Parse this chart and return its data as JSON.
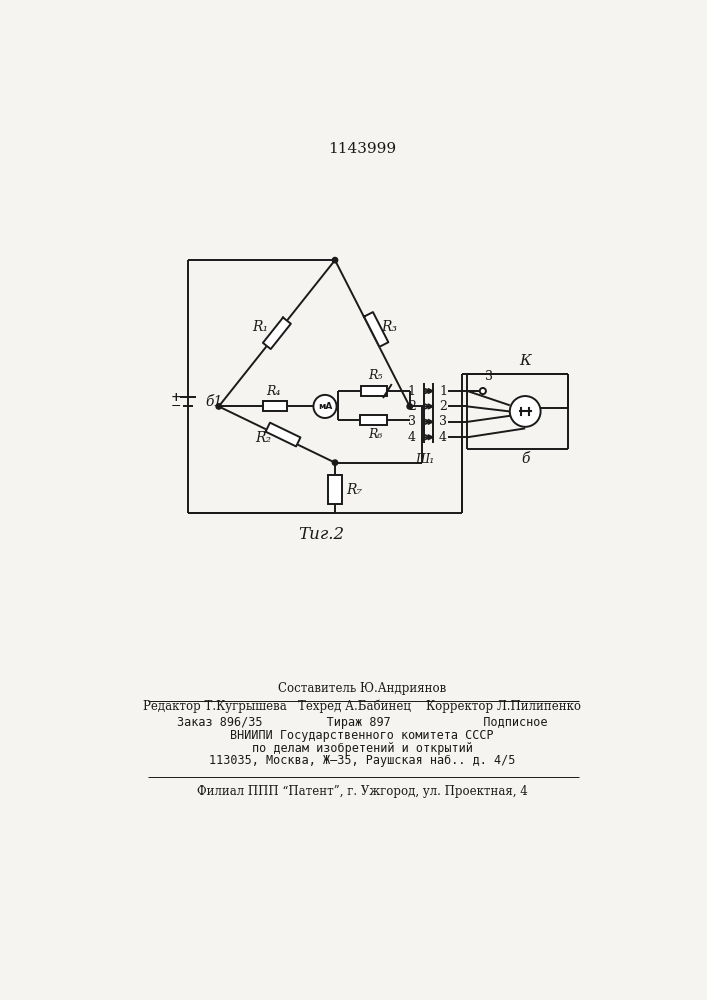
{
  "title": "1143999",
  "fig_label": "Τиг.2",
  "bg_color": "#f5f4f0",
  "line_color": "#1a1a1a",
  "line_width": 1.4,
  "footer_line1": "Составитель Ю.Андриянов",
  "footer_line2": "Редактор Т.Кугрышева   Техред А.Бабинец    Корректор Л.Пилипенко",
  "footer_line3": "Заказ 896/35         Тираж 897             Подписное",
  "footer_line4": "ВНИИПИ Государственного комитета СССР",
  "footer_line5": "по делам изобретений и открытий",
  "footer_line6": "113035, Москва, Ж–35, Раушская наб.. д. 4/5",
  "footer_line7": "Филиал ППП “Патент”, г. Ужгород, ул. Проектная, 4"
}
